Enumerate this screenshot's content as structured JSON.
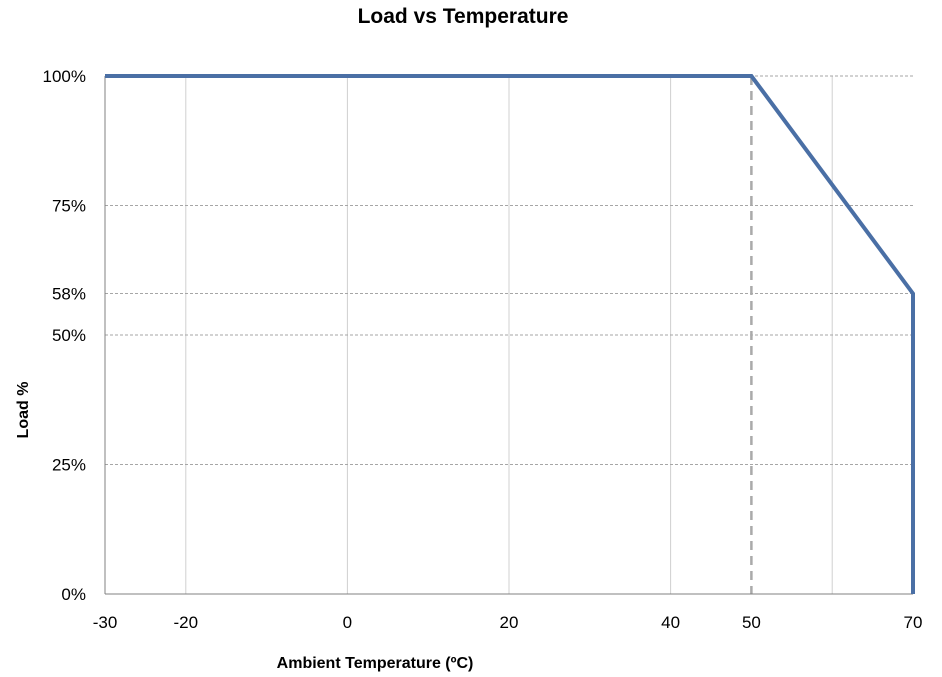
{
  "chart_data": {
    "type": "line",
    "title": "Load vs Temperature",
    "xlabel": "Ambient Temperature (ºC)",
    "ylabel": "Load %",
    "x_ticks": [
      -30,
      -20,
      0,
      20,
      40,
      50,
      70
    ],
    "x_tick_labels": [
      "-30",
      "-20",
      "0",
      "20",
      "40",
      "50",
      "70"
    ],
    "x_gridlines": [
      -20,
      0,
      20,
      40,
      60
    ],
    "y_ticks": [
      0,
      25,
      50,
      58,
      75,
      100
    ],
    "y_tick_labels": [
      "0%",
      "25%",
      "50%",
      "58%",
      "75%",
      "100%"
    ],
    "xlim": [
      -30,
      70
    ],
    "ylim": [
      0,
      100
    ],
    "grid": true,
    "reference_lines": [
      {
        "axis": "x",
        "value": 50,
        "style": "dashed",
        "color": "#aaaaaa"
      }
    ],
    "series": [
      {
        "color": "#4a6fa5",
        "points": [
          {
            "x": -30,
            "y": 100
          },
          {
            "x": 50,
            "y": 100
          },
          {
            "x": 70,
            "y": 58
          },
          {
            "x": 70,
            "y": 0
          }
        ]
      }
    ]
  }
}
